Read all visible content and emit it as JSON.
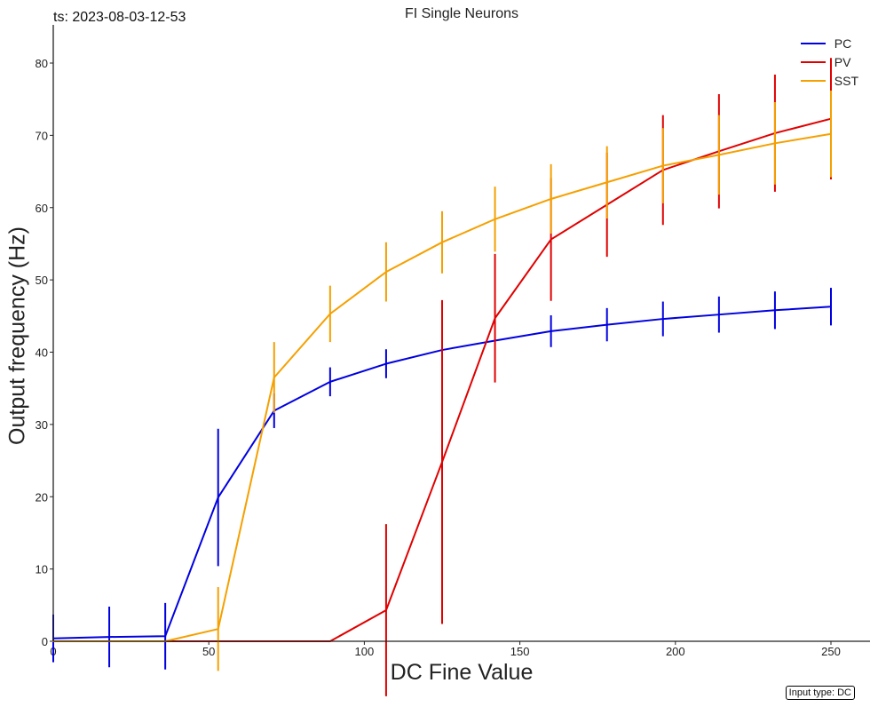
{
  "timestamp_text": "ts: 2023-08-03-12-53",
  "note": "Input type: DC",
  "chart_data": {
    "type": "line",
    "title": "FI Single Neurons",
    "xlabel": "DC Fine Value",
    "ylabel": "Output frequency (Hz)",
    "xlim": [
      0,
      260
    ],
    "ylim": [
      0,
      85
    ],
    "xticks": [
      0,
      50,
      100,
      150,
      200,
      250
    ],
    "yticks": [
      0,
      10,
      20,
      30,
      40,
      50,
      60,
      70,
      80
    ],
    "x": [
      0,
      18,
      36,
      53,
      71,
      89,
      107,
      125,
      142,
      160,
      178,
      196,
      214,
      232,
      250
    ],
    "legend_position": "top-right",
    "series": [
      {
        "name": "PC",
        "color": "#0000e0",
        "values": [
          0.4,
          0.6,
          0.7,
          19.9,
          31.9,
          35.9,
          38.4,
          40.3,
          41.6,
          42.9,
          43.8,
          44.6,
          45.2,
          45.8,
          46.3
        ],
        "errors": [
          3.3,
          4.2,
          4.6,
          9.5,
          2.4,
          2.0,
          2.0,
          0,
          0,
          2.2,
          2.3,
          2.4,
          2.5,
          2.6,
          2.6
        ]
      },
      {
        "name": "PV",
        "color": "#e00000",
        "values": [
          0,
          0,
          0,
          0,
          0,
          0,
          4.3,
          24.8,
          44.7,
          55.6,
          60.4,
          65.2,
          67.8,
          70.3,
          72.3
        ],
        "errors": [
          0,
          0,
          0,
          0,
          0,
          0,
          11.9,
          22.4,
          8.9,
          8.5,
          7.2,
          7.6,
          7.9,
          8.1,
          8.4
        ]
      },
      {
        "name": "SST",
        "color": "#f5a000",
        "values": [
          0,
          0,
          0,
          1.7,
          36.5,
          45.3,
          51.1,
          55.2,
          58.4,
          61.2,
          63.5,
          65.8,
          67.3,
          68.9,
          70.2
        ],
        "errors": [
          0,
          0,
          0,
          5.8,
          4.9,
          3.9,
          4.1,
          4.3,
          4.5,
          4.8,
          5.0,
          5.2,
          5.5,
          5.7,
          6.0
        ]
      }
    ]
  }
}
